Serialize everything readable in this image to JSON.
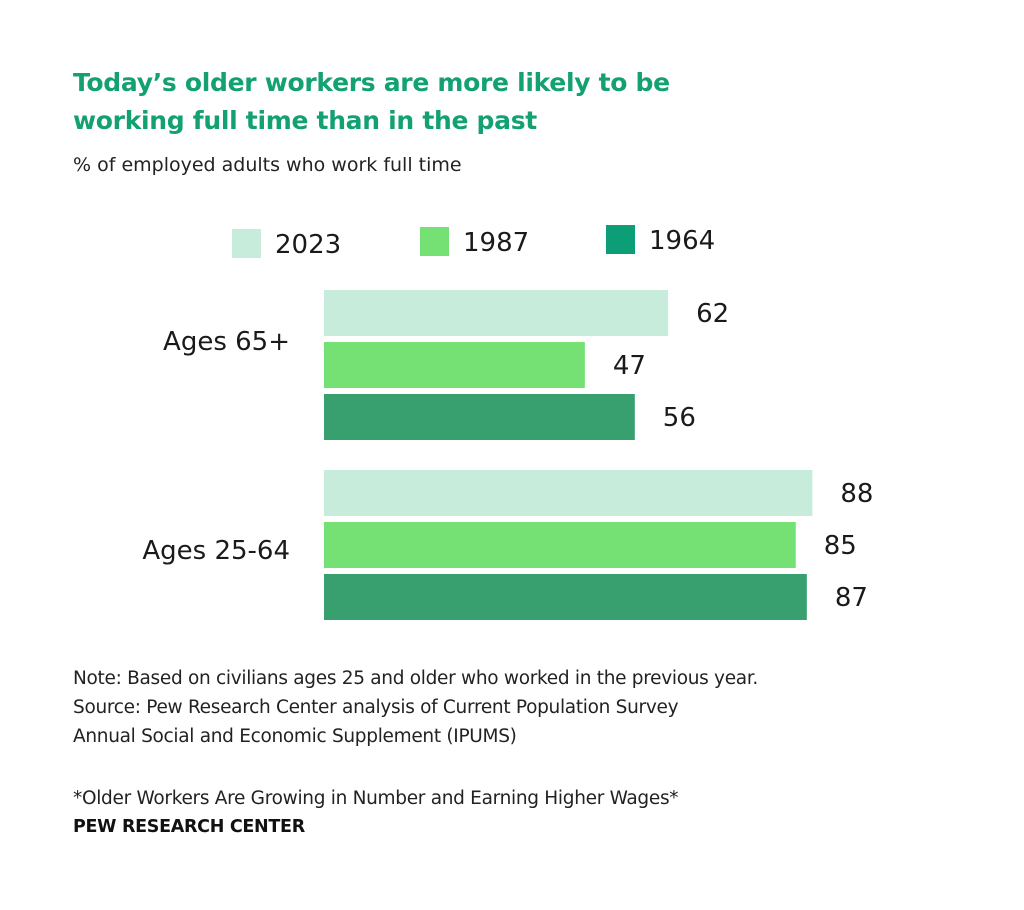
{
  "header": {
    "title": "Today’s older workers are more likely to be working full time than in the past",
    "subtitle": "% of employed adults who work full time"
  },
  "chart_data": {
    "type": "bar",
    "orientation": "horizontal",
    "title": "Today’s older workers are more likely to be working full time than in the past",
    "subtitle": "% of employed adults who work full time",
    "xlabel": "",
    "ylabel": "",
    "categories": [
      "Ages 65+",
      "Ages 25-64"
    ],
    "series": [
      {
        "name": "2023",
        "color": "#c8ecdb",
        "values": [
          62,
          88
        ]
      },
      {
        "name": "1987",
        "color": "#75e073",
        "values": [
          47,
          85
        ]
      },
      {
        "name": "1964",
        "color": "#38a06f",
        "values": [
          56,
          87
        ]
      }
    ],
    "legend_colors": {
      "2023": "#c8ecdb",
      "1987": "#75e073",
      "1964": "#0b9e77"
    },
    "xlim": [
      0,
      100
    ],
    "grid": false,
    "legend_position": "top",
    "data_labels": true
  },
  "footer": {
    "note": "Note: Based on civilians ages 25 and older who worked in the previous year.",
    "source_line1": "Source: Pew Research Center analysis of Current Population Survey",
    "source_line2": "Annual Social and Economic Supplement (IPUMS)",
    "report_title": "*Older Workers Are Growing in Number and Earning Higher Wages*",
    "brand": "PEW RESEARCH CENTER"
  }
}
